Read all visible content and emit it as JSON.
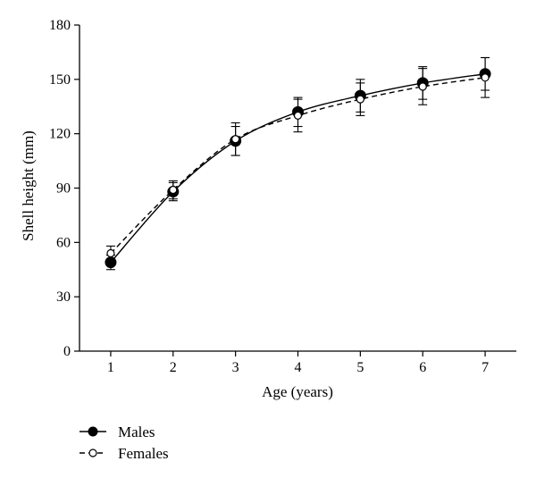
{
  "chart_data": {
    "type": "line",
    "xlabel": "Age (years)",
    "ylabel": "Shell height (mm)",
    "x": [
      1,
      2,
      3,
      4,
      5,
      6,
      7
    ],
    "xlim": [
      0.5,
      7.5
    ],
    "ylim": [
      0,
      180
    ],
    "yticks": [
      0,
      30,
      60,
      90,
      120,
      150,
      180
    ],
    "xticks": [
      1,
      2,
      3,
      4,
      5,
      6,
      7
    ],
    "grid": false,
    "legend": "bottom-left",
    "series": [
      {
        "name": "Males",
        "marker": "filled-circle",
        "line": "solid",
        "values": [
          49,
          88,
          116,
          132,
          141,
          148,
          153
        ],
        "errors": [
          4,
          5,
          8,
          8,
          9,
          9,
          9
        ],
        "color": "#000000"
      },
      {
        "name": "Females",
        "marker": "open-circle",
        "line": "dashed",
        "values": [
          54,
          89,
          117,
          130,
          139,
          146,
          151
        ],
        "errors": [
          4,
          5,
          9,
          9,
          9,
          10,
          11
        ],
        "color": "#000000"
      }
    ]
  }
}
